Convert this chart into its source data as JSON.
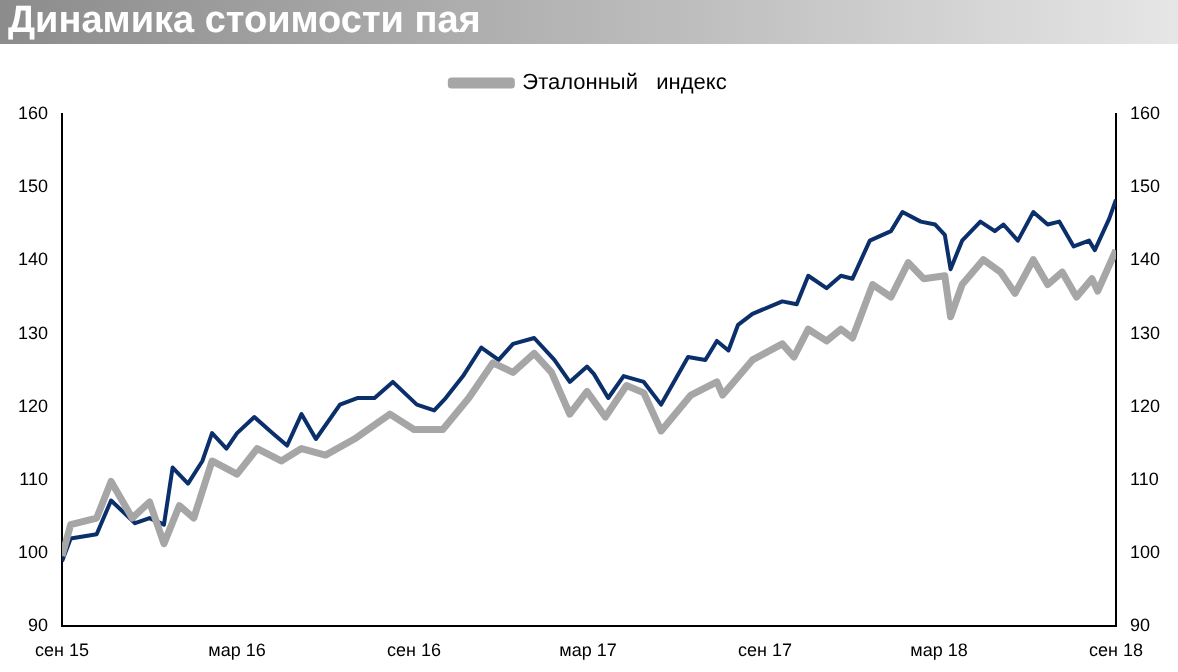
{
  "chart_data": {
    "type": "line",
    "title": "Динамика стоимости пая",
    "series": [
      {
        "color": "#0b2f6b",
        "x": [
          "2015-09-01",
          "2015-09-10",
          "2015-10-07",
          "2015-10-22",
          "2015-11-16",
          "2015-12-01",
          "2015-12-16",
          "2015-12-25",
          "2016-01-10",
          "2016-01-25",
          "2016-02-04",
          "2016-02-19",
          "2016-03-01",
          "2016-03-19",
          "2016-04-07",
          "2016-04-22",
          "2016-05-07",
          "2016-05-22",
          "2016-06-16",
          "2016-07-04",
          "2016-07-22",
          "2016-08-10",
          "2016-09-04",
          "2016-09-22",
          "2016-10-04",
          "2016-10-22",
          "2016-11-10",
          "2016-11-28",
          "2016-12-13",
          "2017-01-04",
          "2017-01-25",
          "2017-02-10",
          "2017-02-28",
          "2017-03-07",
          "2017-03-22",
          "2017-04-07",
          "2017-04-28",
          "2017-05-16",
          "2017-06-13",
          "2017-07-01",
          "2017-07-13",
          "2017-07-25",
          "2017-08-04",
          "2017-08-19",
          "2017-09-19",
          "2017-10-04",
          "2017-10-16",
          "2017-11-04",
          "2017-11-19",
          "2017-12-01",
          "2017-12-19",
          "2018-01-10",
          "2018-01-22",
          "2018-02-10",
          "2018-02-25",
          "2018-03-07",
          "2018-03-13",
          "2018-03-25",
          "2018-04-13",
          "2018-04-28",
          "2018-05-07",
          "2018-05-22",
          "2018-06-07",
          "2018-06-22",
          "2018-07-04",
          "2018-07-19",
          "2018-08-04",
          "2018-08-10",
          "2018-08-25",
          "2018-09-01"
        ],
        "values": [
          98.9,
          102,
          102.6,
          107.2,
          104.1,
          104.8,
          103.9,
          111.7,
          109.5,
          112.6,
          116.4,
          114.3,
          116.4,
          118.6,
          116.4,
          114.7,
          119,
          115.6,
          120.3,
          121.2,
          121.2,
          123.4,
          120.3,
          119.5,
          121.2,
          124.2,
          128.1,
          126.4,
          128.6,
          129.4,
          126.4,
          123.4,
          125.5,
          124.5,
          121.2,
          124.2,
          123.4,
          120.3,
          126.8,
          126.4,
          129,
          127.7,
          131.2,
          132.7,
          134.4,
          134,
          137.9,
          136.2,
          137.9,
          137.5,
          142.7,
          144,
          146.6,
          145.3,
          144.9,
          143.5,
          138.8,
          142.7,
          145.3,
          144,
          144.9,
          142.7,
          146.6,
          144.9,
          145.3,
          141.9,
          142.7,
          141.4,
          145.7,
          148.3
        ]
      },
      {
        "name": "Эталонный   индекс",
        "color": "#a6a6a6",
        "x": [
          "2015-09-01",
          "2015-09-10",
          "2015-10-07",
          "2015-10-22",
          "2015-11-13",
          "2015-12-01",
          "2015-12-16",
          "2016-01-01",
          "2016-01-16",
          "2016-02-04",
          "2016-03-01",
          "2016-03-22",
          "2016-04-16",
          "2016-05-07",
          "2016-06-01",
          "2016-07-01",
          "2016-08-07",
          "2016-09-01",
          "2016-10-01",
          "2016-10-28",
          "2016-11-22",
          "2016-12-13",
          "2017-01-04",
          "2017-01-22",
          "2017-02-10",
          "2017-02-28",
          "2017-03-19",
          "2017-04-10",
          "2017-04-28",
          "2017-05-16",
          "2017-06-16",
          "2017-07-13",
          "2017-07-19",
          "2017-08-19",
          "2017-09-19",
          "2017-10-01",
          "2017-10-16",
          "2017-11-04",
          "2017-11-19",
          "2017-12-01",
          "2017-12-22",
          "2018-01-10",
          "2018-01-28",
          "2018-02-13",
          "2018-03-07",
          "2018-03-13",
          "2018-03-25",
          "2018-04-16",
          "2018-05-04",
          "2018-05-19",
          "2018-06-07",
          "2018-06-22",
          "2018-07-07",
          "2018-07-22",
          "2018-08-07",
          "2018-08-13",
          "2018-09-01"
        ],
        "values": [
          99.6,
          103.9,
          104.8,
          109.8,
          104.8,
          107,
          101.3,
          106.5,
          104.8,
          112.6,
          110.8,
          114.3,
          112.6,
          114.3,
          113.4,
          115.6,
          119,
          116.9,
          116.9,
          121.2,
          126,
          124.7,
          127.3,
          124.7,
          119,
          122.1,
          118.6,
          122.9,
          121.9,
          116.7,
          121.6,
          123.4,
          121.6,
          126.4,
          128.6,
          126.8,
          130.6,
          129,
          130.6,
          129.4,
          136.7,
          135,
          139.7,
          137.5,
          137.9,
          132.3,
          136.7,
          140.1,
          138.4,
          135.5,
          140.1,
          136.7,
          138.4,
          135,
          137.5,
          135.8,
          141.4
        ]
      }
    ],
    "xlim": [
      "2015-09-01",
      "2018-09-01"
    ],
    "xticks": [
      {
        "value": "2015-09-01",
        "label": "сен 15"
      },
      {
        "value": "2016-03-01",
        "label": "мар 16"
      },
      {
        "value": "2016-09-01",
        "label": "сен 16"
      },
      {
        "value": "2017-03-01",
        "label": "мар 17"
      },
      {
        "value": "2017-09-01",
        "label": "сен 17"
      },
      {
        "value": "2018-03-01",
        "label": "мар 18"
      },
      {
        "value": "2018-09-01",
        "label": "сен 18"
      }
    ],
    "ylim": [
      90,
      160
    ],
    "yticks": [
      90,
      100,
      110,
      120,
      130,
      140,
      150,
      160
    ],
    "y2lim": [
      90,
      160
    ],
    "y2ticks": [
      90,
      100,
      110,
      120,
      130,
      140,
      150,
      160
    ],
    "grid": false,
    "legend": "top",
    "marker": "none",
    "line_style": "solid"
  }
}
